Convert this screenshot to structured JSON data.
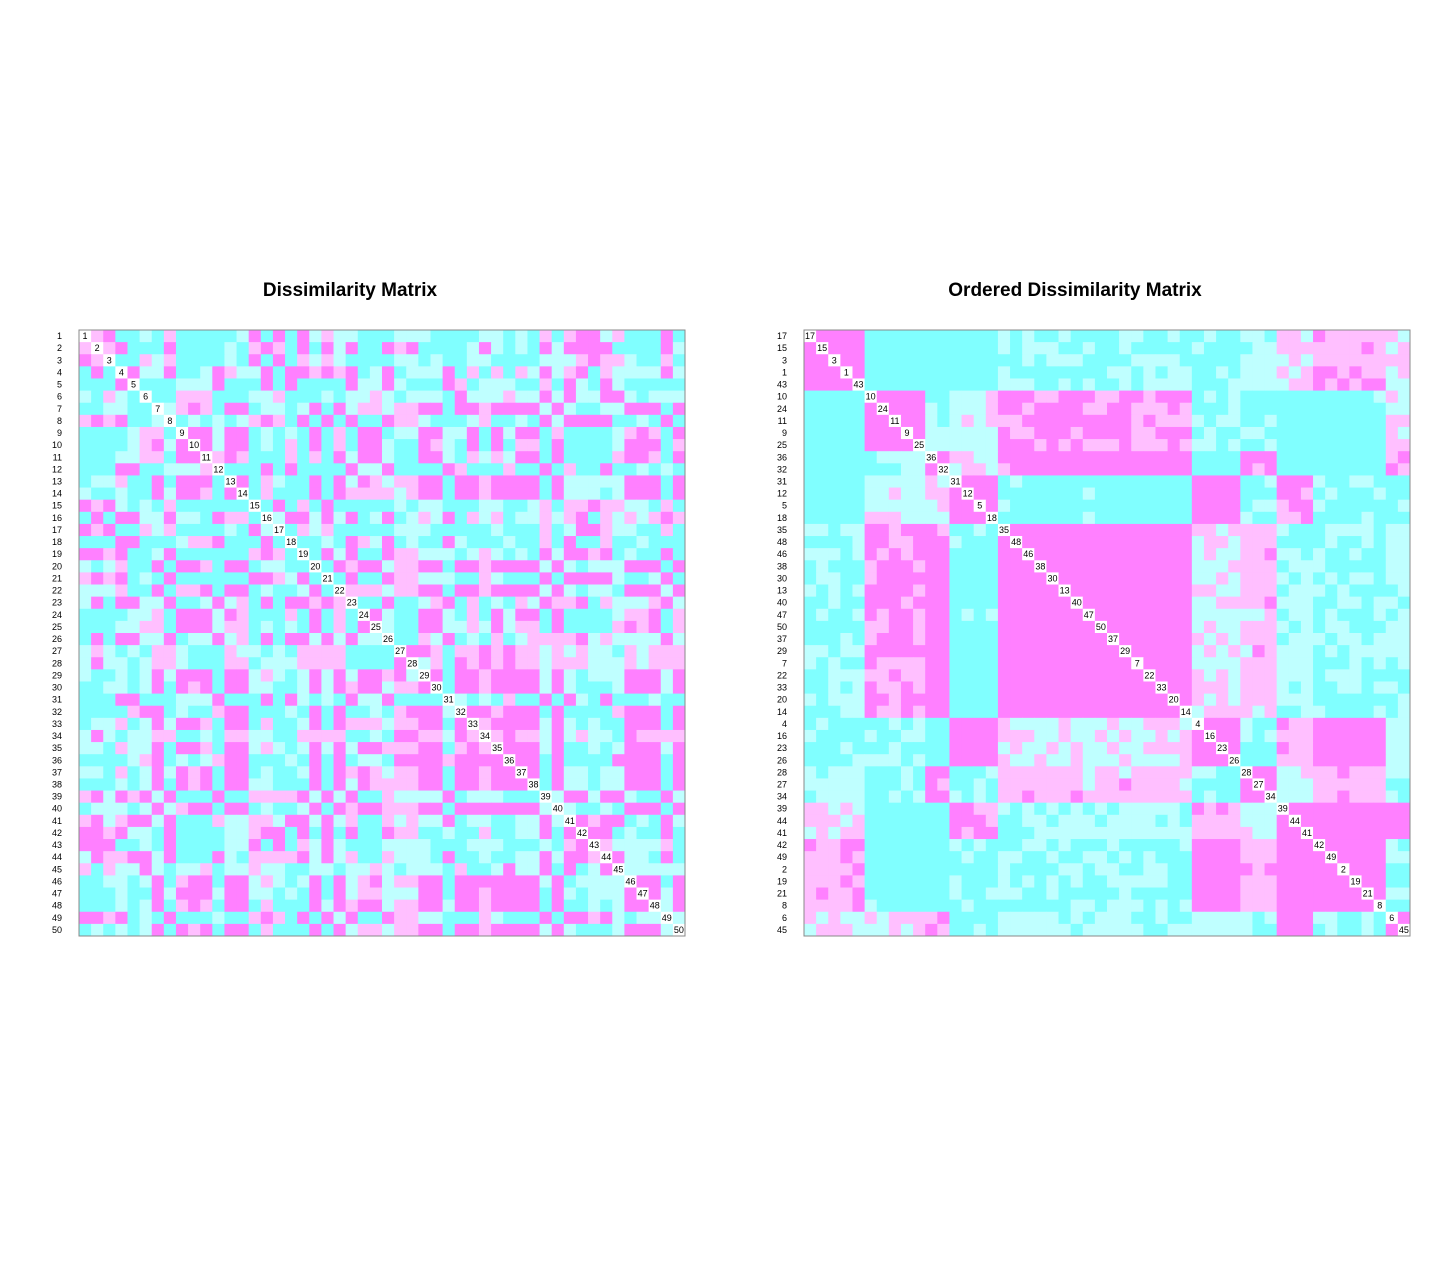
{
  "colors": {
    "level_1": "#FF80FF",
    "level_2": "#FFBFFF",
    "level_3": "#BFFFFF",
    "level_4": "#80FFFF",
    "diagonal": "#FFFFFF",
    "frame": "#888888"
  },
  "chart_data": [
    {
      "type": "heatmap",
      "title": "Dissimilarity Matrix",
      "n": 50,
      "levels": 4,
      "order": [
        1,
        2,
        3,
        4,
        5,
        6,
        7,
        8,
        9,
        10,
        11,
        12,
        13,
        14,
        15,
        16,
        17,
        18,
        19,
        20,
        21,
        22,
        23,
        24,
        25,
        26,
        27,
        28,
        29,
        30,
        31,
        32,
        33,
        34,
        35,
        36,
        37,
        38,
        39,
        40,
        41,
        42,
        43,
        44,
        45,
        46,
        47,
        48,
        49,
        50
      ]
    },
    {
      "type": "heatmap",
      "title": "Ordered Dissimilarity Matrix",
      "n": 50,
      "levels": 4,
      "order": [
        17,
        15,
        3,
        1,
        43,
        10,
        24,
        11,
        9,
        25,
        36,
        32,
        31,
        12,
        5,
        18,
        35,
        48,
        46,
        38,
        30,
        13,
        40,
        47,
        50,
        37,
        29,
        7,
        22,
        33,
        20,
        14,
        4,
        16,
        23,
        26,
        28,
        27,
        34,
        39,
        44,
        41,
        42,
        49,
        2,
        19,
        21,
        8,
        6,
        45
      ],
      "cluster_sizes": [
        5,
        5,
        2,
        4,
        16,
        4,
        3,
        3,
        6,
        2
      ]
    }
  ]
}
